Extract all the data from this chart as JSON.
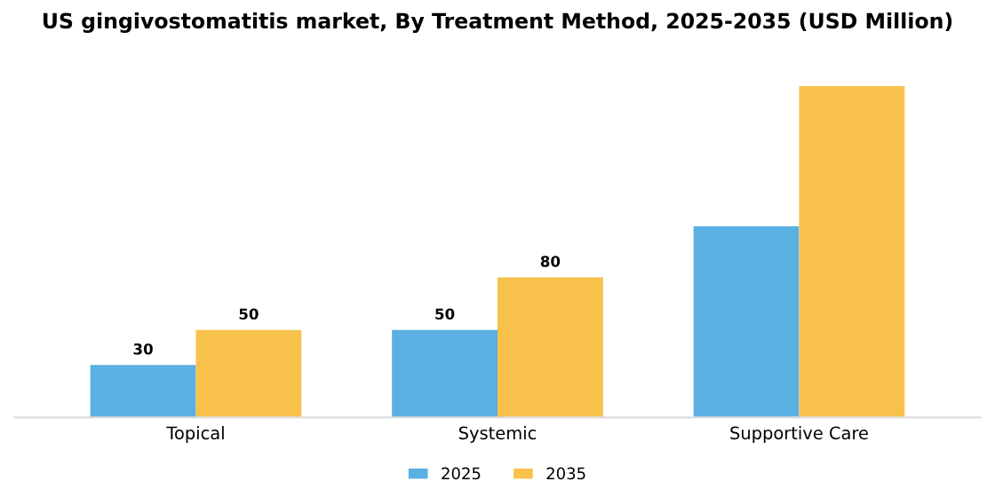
{
  "chart_data": {
    "type": "bar",
    "title": "US gingivostomatitis market, By Treatment Method, 2025-2035 (USD Million)",
    "categories": [
      "Topical",
      "Systemic",
      "Supportive Care"
    ],
    "series": [
      {
        "name": "2025",
        "color": "#5aafe3",
        "values": [
          30,
          50,
          109
        ],
        "value_labels": [
          "30",
          "50",
          null
        ]
      },
      {
        "name": "2035",
        "color": "#f7c14c",
        "values": [
          50,
          80,
          189
        ],
        "value_labels": [
          "50",
          "80",
          null
        ]
      }
    ],
    "legend": "bottom",
    "grid": false,
    "tick_labels": "x"
  }
}
